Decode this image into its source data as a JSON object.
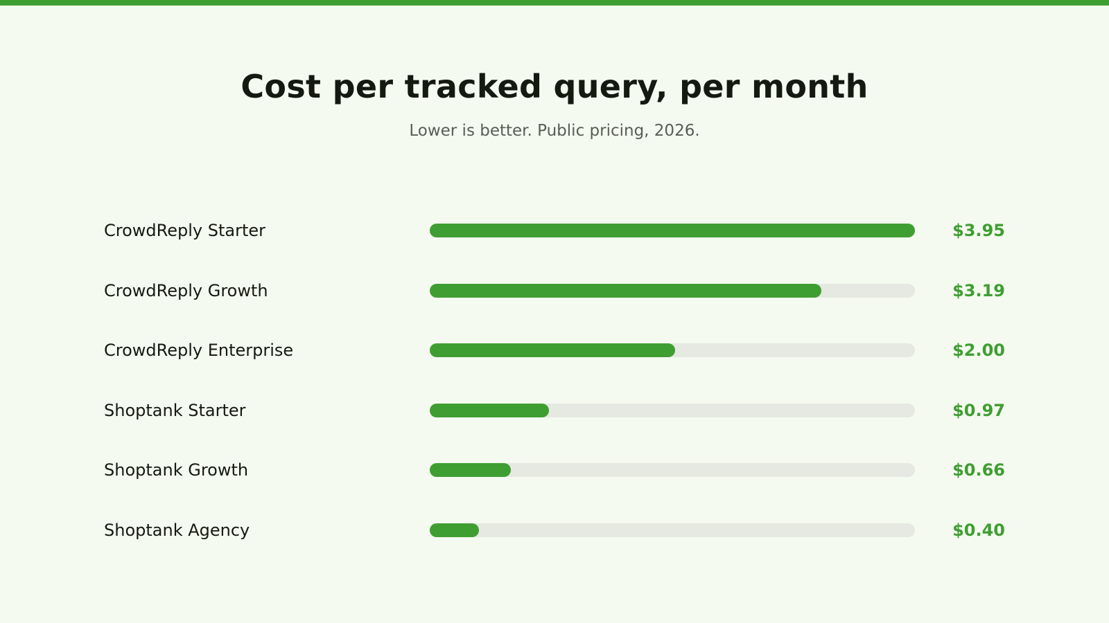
{
  "colors": {
    "accent": "#3f9e32",
    "track": "#e6e8e2",
    "background": "#f4faef",
    "text": "#141a12",
    "muted": "#585e56"
  },
  "chart_data": {
    "type": "bar",
    "orientation": "horizontal",
    "title": "Cost per tracked query, per month",
    "subtitle": "Lower is better. Public pricing, 2026.",
    "categories": [
      "CrowdReply Starter",
      "CrowdReply Growth",
      "CrowdReply Enterprise",
      "Shoptank Starter",
      "Shoptank Growth",
      "Shoptank Agency"
    ],
    "values": [
      3.95,
      3.19,
      2.0,
      0.97,
      0.66,
      0.4
    ],
    "value_labels": [
      "$3.95",
      "$3.19",
      "$2.00",
      "$0.97",
      "$0.66",
      "$0.40"
    ],
    "xlim": [
      0,
      3.95
    ],
    "grid": false,
    "legend": "none"
  }
}
